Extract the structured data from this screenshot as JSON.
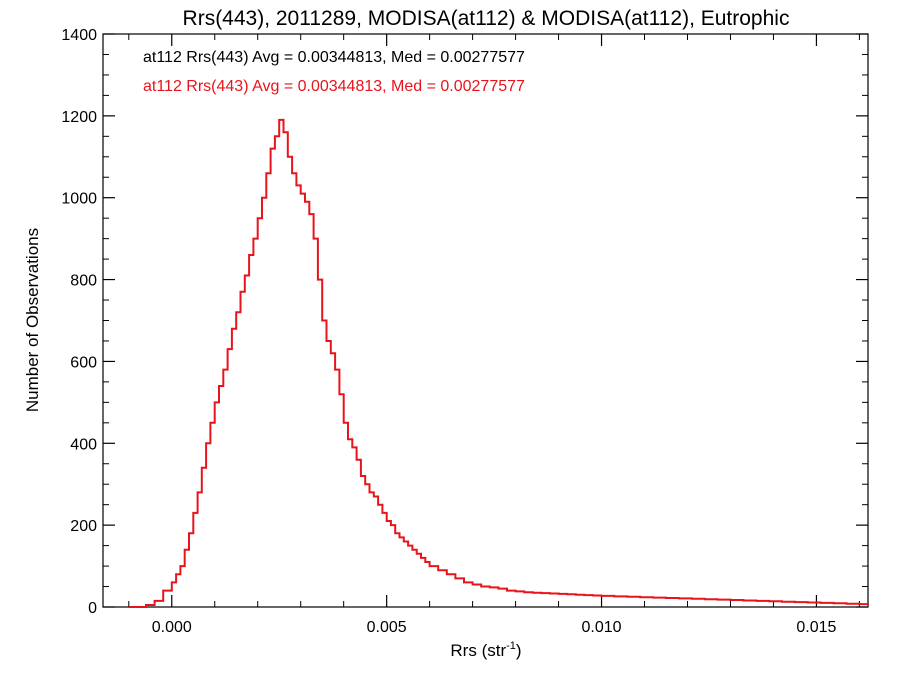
{
  "chart_data": {
    "type": "line",
    "title": "Rrs(443), 2011289, MODISA(at112) & MODISA(at112), Eutrophic",
    "xlabel": {
      "main": "Rrs (str",
      "sup": "-1",
      "close": ")"
    },
    "ylabel": "Number of Observations",
    "xlim": [
      -0.0016,
      0.0162
    ],
    "ylim": [
      0,
      1400
    ],
    "x_ticks": [
      0.0,
      0.005,
      0.01,
      0.015
    ],
    "x_tick_labels": [
      "0.000",
      "0.005",
      "0.010",
      "0.015"
    ],
    "y_ticks": [
      0,
      200,
      400,
      600,
      800,
      1000,
      1200,
      1400
    ],
    "y_tick_labels": [
      "0",
      "200",
      "400",
      "600",
      "800",
      "1000",
      "1200",
      "1400"
    ],
    "grid": false,
    "annotations": [
      {
        "text": "at112 Rrs(443) Avg = 0.00344813, Med = 0.00277577",
        "color": "#000000"
      },
      {
        "text": "at112 Rrs(443) Avg = 0.00344813, Med = 0.00277577",
        "color": "#e8141c"
      }
    ],
    "series": [
      {
        "color": "#e8141c",
        "step": true,
        "x": [
          -0.001,
          -0.0006,
          -0.0004,
          -0.0002,
          0.0,
          0.0001,
          0.0002,
          0.0003,
          0.0004,
          0.0005,
          0.0006,
          0.0007,
          0.0008,
          0.0009,
          0.001,
          0.0011,
          0.0012,
          0.0013,
          0.0014,
          0.0015,
          0.0016,
          0.0017,
          0.0018,
          0.0019,
          0.002,
          0.0021,
          0.0022,
          0.0023,
          0.0024,
          0.0025,
          0.0026,
          0.0027,
          0.0028,
          0.0029,
          0.003,
          0.0031,
          0.0032,
          0.0033,
          0.0034,
          0.0035,
          0.0036,
          0.0037,
          0.0038,
          0.0039,
          0.004,
          0.0041,
          0.0042,
          0.0043,
          0.0044,
          0.0045,
          0.0046,
          0.0047,
          0.0048,
          0.0049,
          0.005,
          0.0051,
          0.0052,
          0.0053,
          0.0054,
          0.0055,
          0.0056,
          0.0057,
          0.0058,
          0.0059,
          0.006,
          0.0062,
          0.0064,
          0.0066,
          0.0068,
          0.007,
          0.0072,
          0.0074,
          0.0076,
          0.0078,
          0.008,
          0.0082,
          0.0084,
          0.0086,
          0.0088,
          0.009,
          0.0092,
          0.0094,
          0.0096,
          0.0098,
          0.01,
          0.0103,
          0.0106,
          0.0109,
          0.0112,
          0.0115,
          0.0118,
          0.0121,
          0.0124,
          0.0127,
          0.013,
          0.0133,
          0.0136,
          0.0139,
          0.0142,
          0.0145,
          0.0148,
          0.0151,
          0.0154,
          0.0157,
          0.016,
          0.0162
        ],
        "y": [
          0,
          5,
          15,
          40,
          60,
          80,
          100,
          140,
          180,
          230,
          280,
          340,
          400,
          450,
          500,
          540,
          580,
          630,
          680,
          720,
          770,
          810,
          860,
          900,
          950,
          1000,
          1060,
          1120,
          1150,
          1190,
          1160,
          1100,
          1060,
          1030,
          1010,
          990,
          960,
          900,
          800,
          700,
          650,
          620,
          580,
          520,
          450,
          410,
          390,
          360,
          320,
          300,
          280,
          270,
          250,
          230,
          210,
          200,
          180,
          170,
          160,
          150,
          140,
          130,
          120,
          110,
          100,
          90,
          80,
          70,
          60,
          55,
          50,
          48,
          45,
          40,
          38,
          36,
          35,
          34,
          33,
          32,
          31,
          30,
          29,
          28,
          27,
          26,
          25,
          24,
          23,
          22,
          21,
          20,
          19,
          18,
          17,
          16,
          15,
          14,
          13,
          12,
          11,
          10,
          9,
          8,
          7,
          6
        ]
      }
    ]
  }
}
